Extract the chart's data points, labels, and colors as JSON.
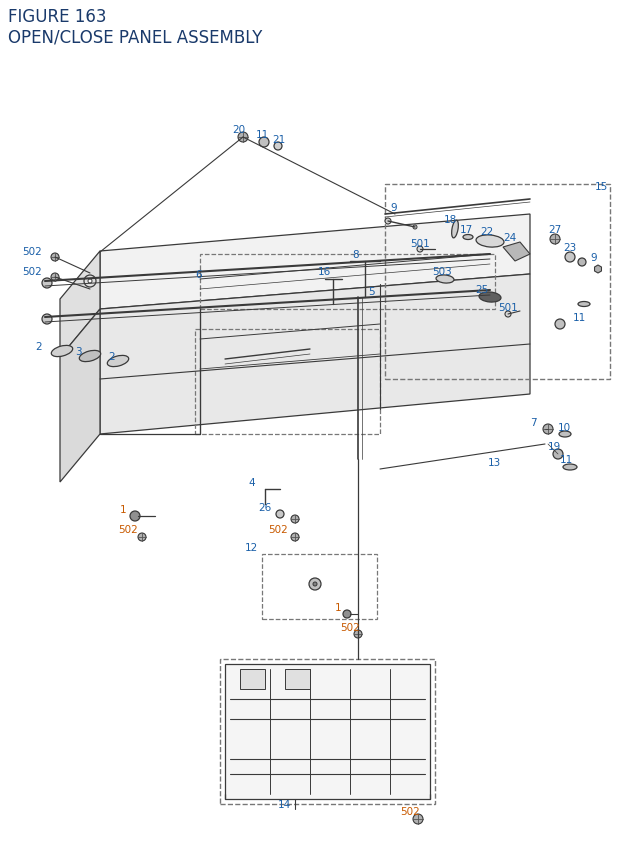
{
  "title_line1": "FIGURE 163",
  "title_line2": "OPEN/CLOSE PANEL ASSEMBLY",
  "title_color": "#1a3a6b",
  "title_fontsize": 12,
  "bg_color": "#ffffff",
  "line_color": "#3a3a3a",
  "label_color_blue": "#1a5fa8",
  "label_color_orange": "#c85a00",
  "label_fontsize": 7.5
}
